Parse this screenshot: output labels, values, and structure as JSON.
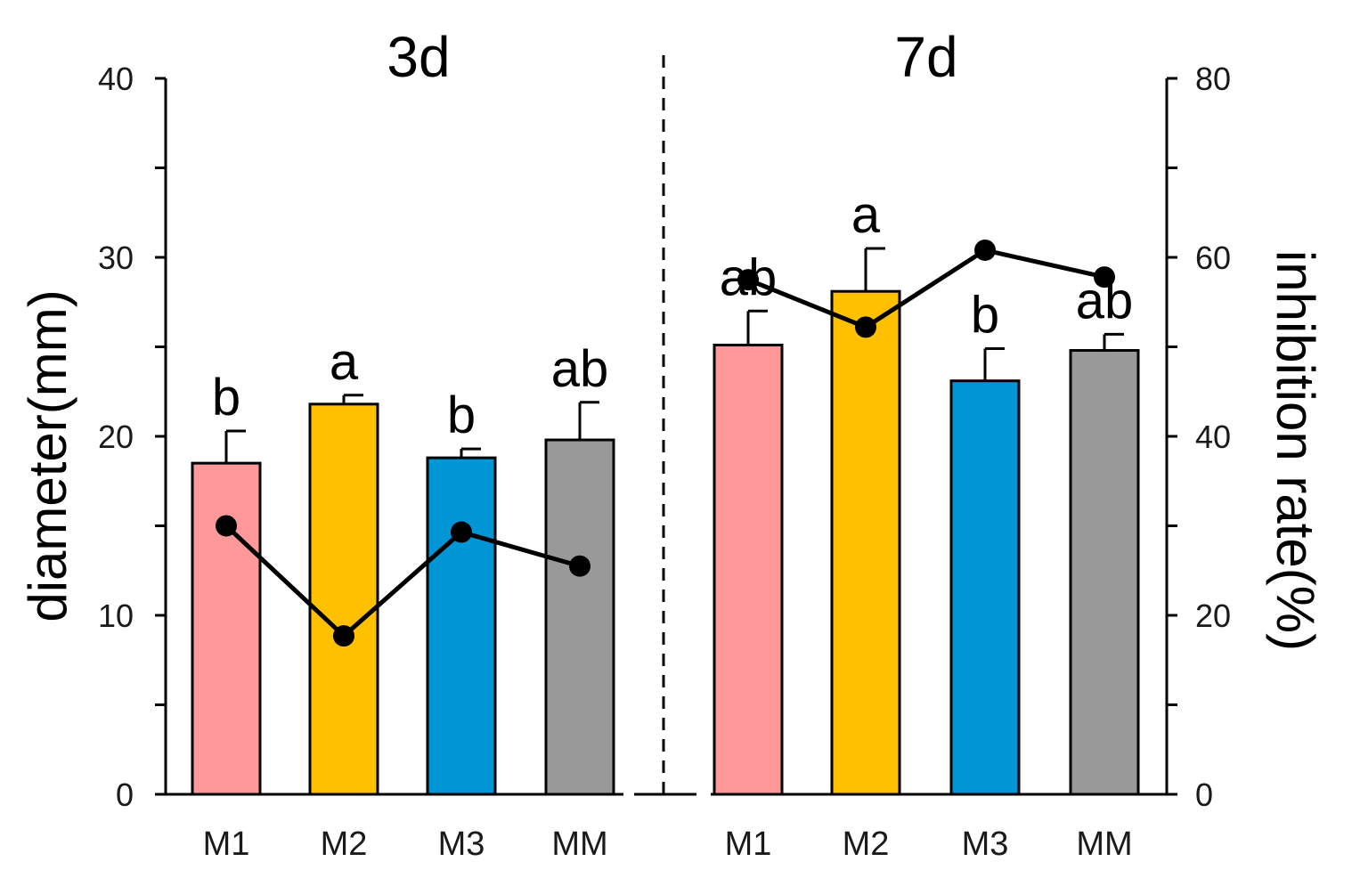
{
  "chart_data": {
    "type": "bar",
    "y_left": {
      "label": "diameter(mm)",
      "lim": [
        0,
        40
      ],
      "ticks": [
        "0",
        "10",
        "20",
        "30",
        "40"
      ]
    },
    "y_right": {
      "label": "inhibition rate(%)",
      "lim": [
        0,
        80
      ],
      "ticks": [
        "0",
        "20",
        "40",
        "60",
        "80"
      ]
    },
    "grid": false,
    "legend": "none",
    "colors": {
      "M1": "#ff9999",
      "M2": "#ffc000",
      "M3": "#0096d6",
      "MM": "#999999",
      "line": "#000000",
      "separator": "#000000"
    },
    "panels": [
      {
        "title": "3d",
        "categories": [
          "M1",
          "M2",
          "M3",
          "MM"
        ],
        "diameter": [
          18.5,
          21.8,
          18.8,
          19.8
        ],
        "error": [
          1.8,
          0.5,
          0.5,
          2.1
        ],
        "significance": [
          "b",
          "a",
          "b",
          "ab"
        ],
        "inhibition_rate": [
          30.0,
          17.7,
          29.3,
          25.5
        ]
      },
      {
        "title": "7d",
        "categories": [
          "M1",
          "M2",
          "M3",
          "MM"
        ],
        "diameter": [
          25.1,
          28.1,
          23.1,
          24.8
        ],
        "error": [
          1.9,
          2.4,
          1.8,
          0.9
        ],
        "significance": [
          "ab",
          "a",
          "b",
          "ab"
        ],
        "inhibition_rate": [
          57.5,
          52.2,
          60.8,
          57.8
        ]
      }
    ]
  }
}
